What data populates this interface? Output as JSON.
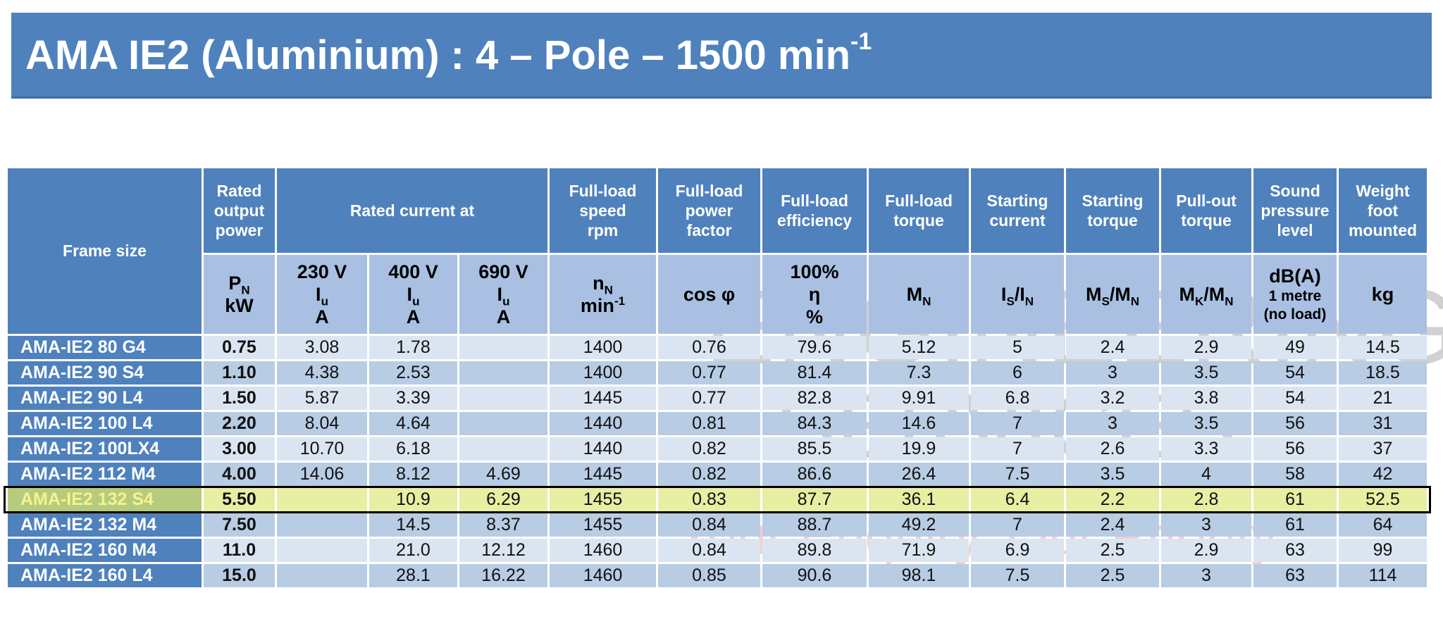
{
  "title": [
    {
      "t": "AMA IE2 (Aluminium) : 4 – Pole – 1500 min"
    },
    {
      "sup": "-1"
    }
  ],
  "table": {
    "frame_header": "Frame size",
    "header_top": [
      [
        "Rated",
        "output",
        "power"
      ],
      [
        "Rated current at"
      ],
      [
        "Full-load",
        "speed",
        "rpm"
      ],
      [
        "Full-load",
        "power",
        "factor"
      ],
      [
        "Full-load",
        "efficiency"
      ],
      [
        "Full-load",
        "torque"
      ],
      [
        "Starting",
        "current"
      ],
      [
        "Starting",
        "torque"
      ],
      [
        "Pull-out",
        "torque"
      ],
      [
        "Sound",
        "pressure",
        "level"
      ],
      [
        "Weight",
        "foot",
        "mounted"
      ]
    ],
    "header_units": [
      [
        [
          {
            "t": "P"
          },
          {
            "sub": "N"
          }
        ],
        "kW"
      ],
      [
        "230 V",
        [
          {
            "t": "I"
          },
          {
            "sub": "u"
          }
        ],
        "A"
      ],
      [
        "400 V",
        [
          {
            "t": "I"
          },
          {
            "sub": "u"
          }
        ],
        "A"
      ],
      [
        "690 V",
        [
          {
            "t": "I"
          },
          {
            "sub": "u"
          }
        ],
        "A"
      ],
      [
        [
          {
            "t": "n"
          },
          {
            "sub": "N"
          }
        ],
        [
          {
            "t": "min"
          },
          {
            "sup": "-1"
          }
        ]
      ],
      [
        "cos φ"
      ],
      [
        "100%",
        "η",
        "%"
      ],
      [
        [
          {
            "t": "M"
          },
          {
            "sub": "N"
          }
        ]
      ],
      [
        [
          {
            "t": "I"
          },
          {
            "sub": "S"
          },
          {
            "t": "/I"
          },
          {
            "sub": "N"
          }
        ]
      ],
      [
        [
          {
            "t": "M"
          },
          {
            "sub": "S"
          },
          {
            "t": "/M"
          },
          {
            "sub": "N"
          }
        ]
      ],
      [
        [
          {
            "t": "M"
          },
          {
            "sub": "K"
          },
          {
            "t": "/M"
          },
          {
            "sub": "N"
          }
        ]
      ],
      [
        "dB(A)",
        "1 metre",
        "(no load)"
      ],
      [
        "kg"
      ]
    ],
    "highlighted_row": 6,
    "rows": [
      [
        "AMA-IE2 80 G4",
        "0.75",
        "3.08",
        "1.78",
        null,
        "1400",
        "0.76",
        "79.6",
        "5.12",
        "5",
        "2.4",
        "2.9",
        "49",
        "14.5"
      ],
      [
        "AMA-IE2 90 S4",
        "1.10",
        "4.38",
        "2.53",
        null,
        "1400",
        "0.77",
        "81.4",
        "7.3",
        "6",
        "3",
        "3.5",
        "54",
        "18.5"
      ],
      [
        "AMA-IE2 90 L4",
        "1.50",
        "5.87",
        "3.39",
        null,
        "1445",
        "0.77",
        "82.8",
        "9.91",
        "6.8",
        "3.2",
        "3.8",
        "54",
        "21"
      ],
      [
        "AMA-IE2 100 L4",
        "2.20",
        "8.04",
        "4.64",
        null,
        "1440",
        "0.81",
        "84.3",
        "14.6",
        "7",
        "3",
        "3.5",
        "56",
        "31"
      ],
      [
        "AMA-IE2 100LX4",
        "3.00",
        "10.70",
        "6.18",
        null,
        "1440",
        "0.82",
        "85.5",
        "19.9",
        "7",
        "2.6",
        "3.3",
        "56",
        "37"
      ],
      [
        "AMA-IE2 112 M4",
        "4.00",
        "14.06",
        "8.12",
        "4.69",
        "1445",
        "0.82",
        "86.6",
        "26.4",
        "7.5",
        "3.5",
        "4",
        "58",
        "42"
      ],
      [
        "AMA-IE2 132 S4",
        "5.50",
        null,
        "10.9",
        "6.29",
        "1455",
        "0.83",
        "87.7",
        "36.1",
        "6.4",
        "2.2",
        "2.8",
        "61",
        "52.5"
      ],
      [
        "AMA-IE2 132 M4",
        "7.50",
        null,
        "14.5",
        "8.37",
        "1455",
        "0.84",
        "88.7",
        "49.2",
        "7",
        "2.4",
        "3",
        "61",
        "64"
      ],
      [
        "AMA-IE2 160 M4",
        "11.0",
        null,
        "21.0",
        "12.12",
        "1460",
        "0.84",
        "89.8",
        "71.9",
        "6.9",
        "2.5",
        "2.9",
        "63",
        "99"
      ],
      [
        "AMA-IE2 160 L4",
        "15.0",
        null,
        "28.1",
        "16.22",
        "1460",
        "0.85",
        "90.6",
        "98.1",
        "7.5",
        "2.5",
        "3",
        "63",
        "114"
      ]
    ]
  },
  "watermark": {
    "line1": "ENGINEERING",
    "line2": "SERVICES",
    "tagline": "Your Enquiry, Our Priority"
  }
}
